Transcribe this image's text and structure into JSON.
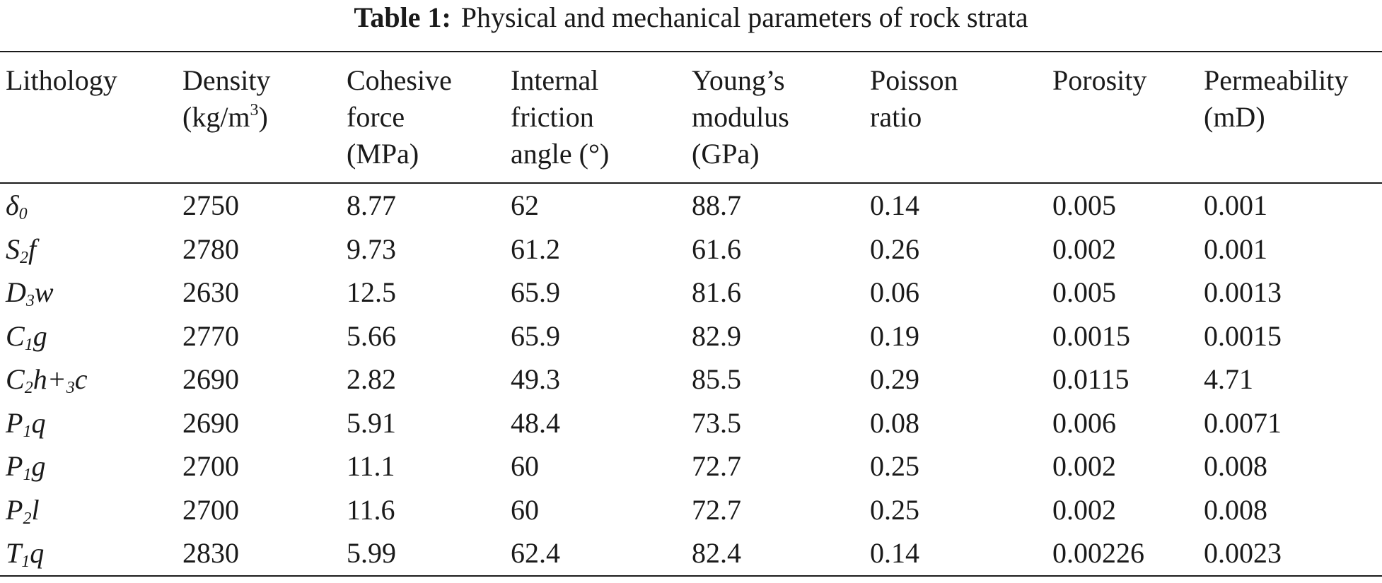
{
  "caption": {
    "label": "Table 1:",
    "text": "Physical and mechanical parameters of rock strata"
  },
  "headers": [
    {
      "lines": [
        "Lithology"
      ]
    },
    {
      "lines": [
        "Density",
        "(kg/m"
      ],
      "sup": "3",
      "after": ")"
    },
    {
      "lines": [
        "Cohesive",
        "force",
        "(MPa)"
      ]
    },
    {
      "lines": [
        "Internal",
        "friction",
        "angle (°)"
      ]
    },
    {
      "lines": [
        "Young’s",
        "modulus",
        "(GPa)"
      ]
    },
    {
      "lines": [
        "Poisson",
        "ratio"
      ]
    },
    {
      "lines": [
        "Porosity"
      ]
    },
    {
      "lines": [
        "Permeability",
        "(mD)"
      ]
    }
  ],
  "rows": [
    {
      "lith": {
        "base": "δ",
        "sub": "0",
        "rest": ""
      },
      "density": "2750",
      "cohesion": "8.77",
      "friction": "62",
      "youngs": "88.7",
      "poisson": "0.14",
      "porosity": "0.005",
      "permeability": "0.001"
    },
    {
      "lith": {
        "base": "S",
        "sub": "2",
        "rest": "f"
      },
      "density": "2780",
      "cohesion": "9.73",
      "friction": "61.2",
      "youngs": "61.6",
      "poisson": "0.26",
      "porosity": "0.002",
      "permeability": "0.001"
    },
    {
      "lith": {
        "base": "D",
        "sub": "3",
        "rest": "w"
      },
      "density": "2630",
      "cohesion": "12.5",
      "friction": "65.9",
      "youngs": "81.6",
      "poisson": "0.06",
      "porosity": "0.005",
      "permeability": "0.0013"
    },
    {
      "lith": {
        "base": "C",
        "sub": "1",
        "rest": "g"
      },
      "density": "2770",
      "cohesion": "5.66",
      "friction": "65.9",
      "youngs": "82.9",
      "poisson": "0.19",
      "porosity": "0.0015",
      "permeability": "0.0015"
    },
    {
      "lith": {
        "base": "C",
        "sub": "2",
        "rest": "h+",
        "sub2": "3",
        "rest2": "c"
      },
      "density": "2690",
      "cohesion": "2.82",
      "friction": "49.3",
      "youngs": "85.5",
      "poisson": "0.29",
      "porosity": "0.0115",
      "permeability": "4.71"
    },
    {
      "lith": {
        "base": "P",
        "sub": "1",
        "rest": "q"
      },
      "density": "2690",
      "cohesion": "5.91",
      "friction": "48.4",
      "youngs": "73.5",
      "poisson": "0.08",
      "porosity": "0.006",
      "permeability": "0.0071"
    },
    {
      "lith": {
        "base": "P",
        "sub": "1",
        "rest": "g"
      },
      "density": "2700",
      "cohesion": "11.1",
      "friction": "60",
      "youngs": "72.7",
      "poisson": "0.25",
      "porosity": "0.002",
      "permeability": "0.008"
    },
    {
      "lith": {
        "base": "P",
        "sub": "2",
        "rest": "l"
      },
      "density": "2700",
      "cohesion": "11.6",
      "friction": "60",
      "youngs": "72.7",
      "poisson": "0.25",
      "porosity": "0.002",
      "permeability": "0.008"
    },
    {
      "lith": {
        "base": "T",
        "sub": "1",
        "rest": "q"
      },
      "density": "2830",
      "cohesion": "5.99",
      "friction": "62.4",
      "youngs": "82.4",
      "poisson": "0.14",
      "porosity": "0.00226",
      "permeability": "0.0023"
    }
  ]
}
